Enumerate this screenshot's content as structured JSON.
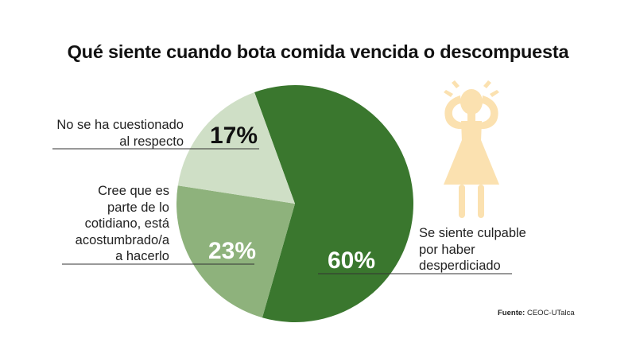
{
  "chart_data": {
    "type": "pie",
    "title": "Qué siente cuando bota comida vencida o descompuesta",
    "slices": [
      {
        "label_lines": [
          "Se siente culpable",
          "por haber",
          "desperdiciado"
        ],
        "value": 60,
        "value_label": "60%",
        "color": "#3a772e"
      },
      {
        "label_lines": [
          "Cree que es",
          "parte de lo",
          "cotidiano, está",
          "acostumbrado/a",
          "a hacerlo"
        ],
        "value": 23,
        "value_label": "23%",
        "color": "#8eb27c"
      },
      {
        "label_lines": [
          "No se ha cuestionado",
          "al respecto"
        ],
        "value": 17,
        "value_label": "17%",
        "color": "#cfdfc6"
      }
    ],
    "legend": "none"
  },
  "source": {
    "prefix": "Fuente:",
    "text": "CEOC-UTalca"
  },
  "colors": {
    "figure": "#fbe1b0",
    "label_line": "#333333",
    "pct_dark": "#111111",
    "pct_light": "#ffffff"
  },
  "icons": [
    "stressed-woman-icon"
  ]
}
